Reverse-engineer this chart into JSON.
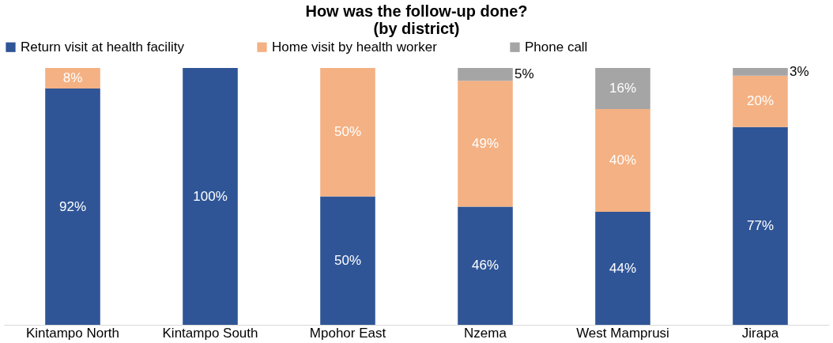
{
  "chart_data": {
    "type": "bar",
    "title": "How was the follow-up done?\n(by district)",
    "categories": [
      "Kintampo North",
      "Kintampo South",
      "Mpohor East",
      "Nzema",
      "West Mamprusi",
      "Jirapa"
    ],
    "stacked": true,
    "legend": "top",
    "grid": false,
    "tick_labels": "x",
    "series": [
      {
        "name": "Return visit at health facility",
        "color": "#2f5597",
        "values": [
          92,
          100,
          50,
          46,
          44,
          77
        ],
        "value_labels": [
          "92%",
          "100%",
          "50%",
          "46%",
          "44%",
          "77%"
        ]
      },
      {
        "name": "Home visit by health worker",
        "color": "#f4b183",
        "values": [
          8,
          0,
          50,
          49,
          40,
          20
        ],
        "value_labels": [
          "8%",
          null,
          "50%",
          "49%",
          "40%",
          "20%"
        ]
      },
      {
        "name": "Phone call",
        "color": "#a5a5a5",
        "values": [
          0,
          0,
          0,
          5,
          16,
          3
        ],
        "value_labels": [
          null,
          null,
          null,
          "5%",
          "16%",
          "3%"
        ]
      }
    ]
  }
}
